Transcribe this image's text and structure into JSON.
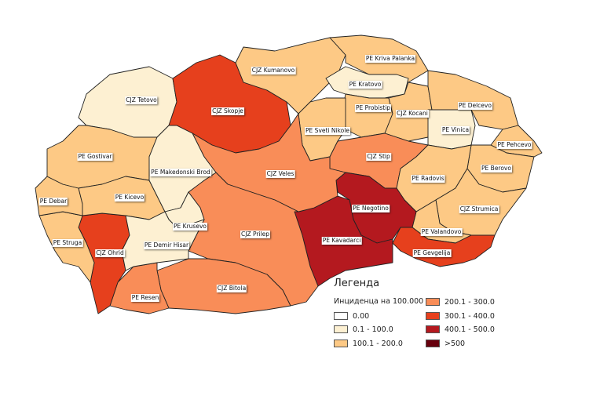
{
  "legend": {
    "title": "Легенда",
    "subtitle": "Инциденца на 100.000",
    "classes": [
      {
        "label": "0.00",
        "color": "#ffffff"
      },
      {
        "label": "0.1 - 100.0",
        "color": "#fdf0d2"
      },
      {
        "label": "100.1 - 200.0",
        "color": "#fdc985"
      },
      {
        "label": "200.1 - 300.0",
        "color": "#f98d58"
      },
      {
        "label": "300.1 - 400.0",
        "color": "#e6401d"
      },
      {
        "label": "400.1 - 500.0",
        "color": "#b4191f"
      },
      {
        "label": ">500",
        "color": "#67000d"
      }
    ]
  },
  "regions": [
    {
      "name": "CJZ Tetovo",
      "class": 1
    },
    {
      "name": "CJZ Skopje",
      "class": 4
    },
    {
      "name": "CJZ Kumanovo",
      "class": 2
    },
    {
      "name": "PE Kriva Palanka",
      "class": 2
    },
    {
      "name": "PE Kratovo",
      "class": 1
    },
    {
      "name": "PE Probistip",
      "class": 2
    },
    {
      "name": "CJZ Kocani",
      "class": 2
    },
    {
      "name": "PE Delcevo",
      "class": 2
    },
    {
      "name": "PE Vinica",
      "class": 1
    },
    {
      "name": "PE Pehcevo",
      "class": 2
    },
    {
      "name": "PE Berovo",
      "class": 2
    },
    {
      "name": "PE Sveti Nikole",
      "class": 2
    },
    {
      "name": "CJZ Stip",
      "class": 3
    },
    {
      "name": "PE Radovis",
      "class": 2
    },
    {
      "name": "CJZ Strumica",
      "class": 2
    },
    {
      "name": "PE Valandovo",
      "class": 2
    },
    {
      "name": "PE Gevgelija",
      "class": 4
    },
    {
      "name": "PE Negotino",
      "class": 5
    },
    {
      "name": "PE Kavadarci",
      "class": 5
    },
    {
      "name": "CJZ Veles",
      "class": 3
    },
    {
      "name": "CJZ Prilep",
      "class": 3
    },
    {
      "name": "CJZ Bitola",
      "class": 3
    },
    {
      "name": "PE Resen",
      "class": 3
    },
    {
      "name": "CJZ Ohrid",
      "class": 4
    },
    {
      "name": "PE Struga",
      "class": 2
    },
    {
      "name": "PE Debar",
      "class": 2
    },
    {
      "name": "PE Gostivar",
      "class": 2
    },
    {
      "name": "PE Kicevo",
      "class": 2
    },
    {
      "name": "PE Makedonski Brod",
      "class": 1
    },
    {
      "name": "PE Krusevo",
      "class": 1
    },
    {
      "name": "PE Demir Hisar",
      "class": 1
    }
  ]
}
